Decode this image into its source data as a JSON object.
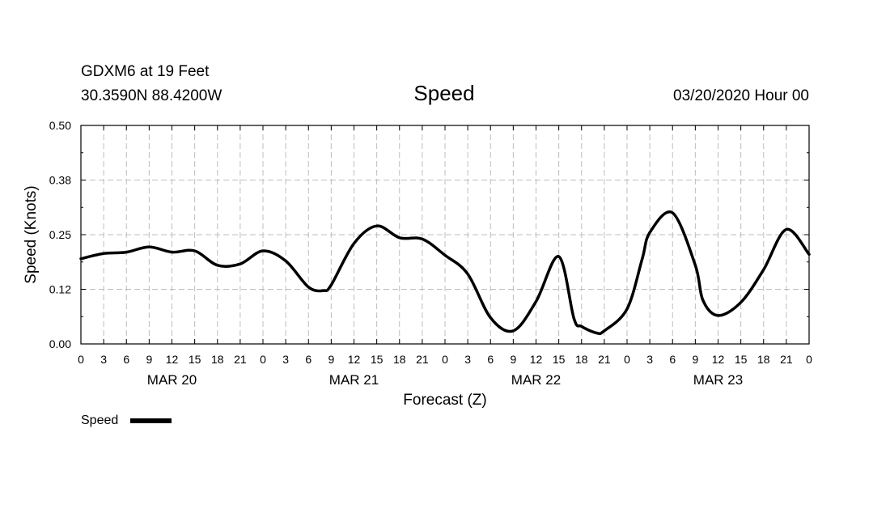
{
  "header": {
    "station_line": "GDXM6 at 19 Feet",
    "coords_line": "30.3590N 88.4200W",
    "title": "Speed",
    "issued": "03/20/2020 Hour 00"
  },
  "chart_data": {
    "type": "line",
    "title": "Speed",
    "xlabel": "Forecast (Z)",
    "ylabel": "Speed (Knots)",
    "ylim": [
      0,
      0.5
    ],
    "xlim": [
      0,
      96
    ],
    "y_ticks": [
      "0.00",
      "0.12",
      "0.25",
      "0.38",
      "0.50"
    ],
    "y_tick_values": [
      0,
      0.125,
      0.25,
      0.375,
      0.5
    ],
    "x_tick_labels": [
      "0",
      "3",
      "6",
      "9",
      "12",
      "15",
      "18",
      "21",
      "0",
      "3",
      "6",
      "9",
      "12",
      "15",
      "18",
      "21",
      "0",
      "3",
      "6",
      "9",
      "12",
      "15",
      "18",
      "21",
      "0",
      "3",
      "6",
      "9",
      "12",
      "15",
      "18",
      "21",
      "0"
    ],
    "date_labels": [
      {
        "label": "MAR 20",
        "hour": 12
      },
      {
        "label": "MAR 21",
        "hour": 36
      },
      {
        "label": "MAR 22",
        "hour": 60
      },
      {
        "label": "MAR 23",
        "hour": 84
      }
    ],
    "grid": true,
    "legend_position": "bottom-left",
    "series": [
      {
        "name": "Speed",
        "color": "#000000",
        "x": [
          0,
          3,
          6,
          9,
          12,
          15,
          18,
          21,
          24,
          27,
          30,
          32,
          33,
          36,
          39,
          42,
          45,
          48,
          51,
          54,
          57,
          60,
          63,
          65,
          66,
          68,
          69,
          72,
          74,
          75,
          78,
          81,
          82,
          84,
          87,
          90,
          93,
          96
        ],
        "y": [
          0.195,
          0.207,
          0.21,
          0.222,
          0.21,
          0.213,
          0.18,
          0.183,
          0.213,
          0.19,
          0.13,
          0.122,
          0.135,
          0.23,
          0.27,
          0.243,
          0.24,
          0.203,
          0.16,
          0.06,
          0.03,
          0.097,
          0.2,
          0.058,
          0.04,
          0.025,
          0.03,
          0.08,
          0.195,
          0.255,
          0.3,
          0.18,
          0.1,
          0.065,
          0.095,
          0.17,
          0.262,
          0.205
        ]
      }
    ]
  },
  "legend": {
    "label": "Speed"
  }
}
